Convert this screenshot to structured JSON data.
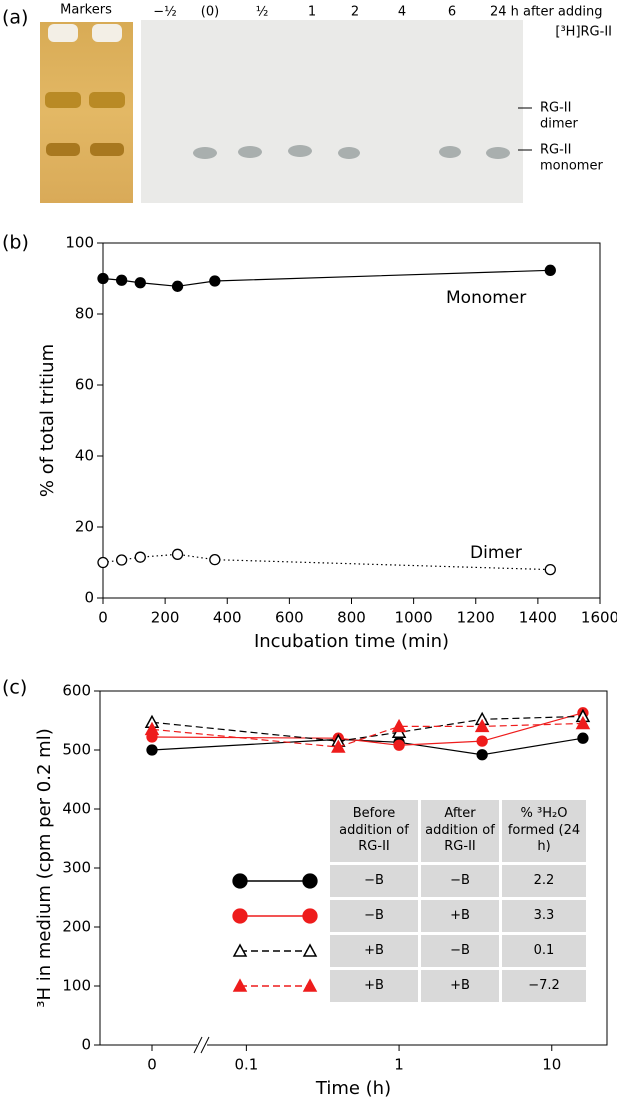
{
  "gel": {
    "label": "(a)",
    "markers": "Markers",
    "lanes": [
      "−½",
      "(0)",
      "½",
      "1",
      "2",
      "4",
      "6"
    ],
    "note": [
      "24 h after adding",
      "[³H]RG-II"
    ],
    "dimer_label": [
      "RG-II",
      "dimer"
    ],
    "monomer_label": [
      "RG-II",
      "monomer"
    ]
  },
  "chart_data": [
    {
      "type": "line",
      "label": "(b)",
      "xlabel": "Incubation time (min)",
      "ylabel": "% of total tritium",
      "x": [
        0,
        60,
        120,
        240,
        360,
        1440
      ],
      "xlim": [
        0,
        1600
      ],
      "xticks": [
        0,
        200,
        400,
        600,
        800,
        1000,
        1200,
        1400,
        1600
      ],
      "ylim": [
        0,
        100
      ],
      "yticks": [
        0,
        20,
        40,
        60,
        80,
        100
      ],
      "series": [
        {
          "color": "#000000",
          "marker": "filled-circle",
          "linestyle": "solid",
          "values": [
            90,
            89.5,
            88.8,
            87.8,
            89.3,
            92.3
          ]
        },
        {
          "color": "#000000",
          "marker": "open-circle",
          "linestyle": "dotted",
          "values": [
            10,
            10.7,
            11.5,
            12.3,
            10.8,
            8
          ]
        }
      ],
      "annotations": [
        "Monomer",
        "Dimer"
      ]
    },
    {
      "type": "line",
      "label": "(c)",
      "xlabel": "Time (h)",
      "ylabel": "³H in medium (cpm per 0.2 ml)",
      "xscale": "log",
      "x_break": true,
      "x": [
        0,
        0.4,
        1,
        3.5,
        16
      ],
      "xlim": [
        0.011,
        23
      ],
      "xticks": [
        0,
        0.1,
        1,
        10
      ],
      "ylim": [
        0,
        600
      ],
      "yticks": [
        0,
        100,
        200,
        300,
        400,
        500,
        600
      ],
      "series": [
        {
          "color": "#000000",
          "marker": "filled-circle",
          "linestyle": "solid",
          "values": [
            500,
            518,
            513,
            492,
            520
          ]
        },
        {
          "color": "#ee1c1c",
          "marker": "filled-circle",
          "linestyle": "solid",
          "values": [
            522,
            520,
            508,
            515,
            563
          ]
        },
        {
          "color": "#000000",
          "marker": "open-triangle",
          "linestyle": "dashed",
          "values": [
            547,
            515,
            530,
            552,
            557
          ]
        },
        {
          "color": "#ee1c1c",
          "marker": "filled-triangle",
          "linestyle": "dashed",
          "values": [
            535,
            505,
            540,
            540,
            545
          ]
        }
      ],
      "table": {
        "header": [
          "Before addition of RG-II",
          "After addition of RG-II",
          "% ³H₂O formed (24 h)"
        ],
        "rows": [
          [
            "−B",
            "−B",
            "2.2"
          ],
          [
            "−B",
            "+B",
            "3.3"
          ],
          [
            "+B",
            "−B",
            "0.1"
          ],
          [
            "+B",
            "+B",
            "−7.2"
          ]
        ]
      }
    }
  ]
}
